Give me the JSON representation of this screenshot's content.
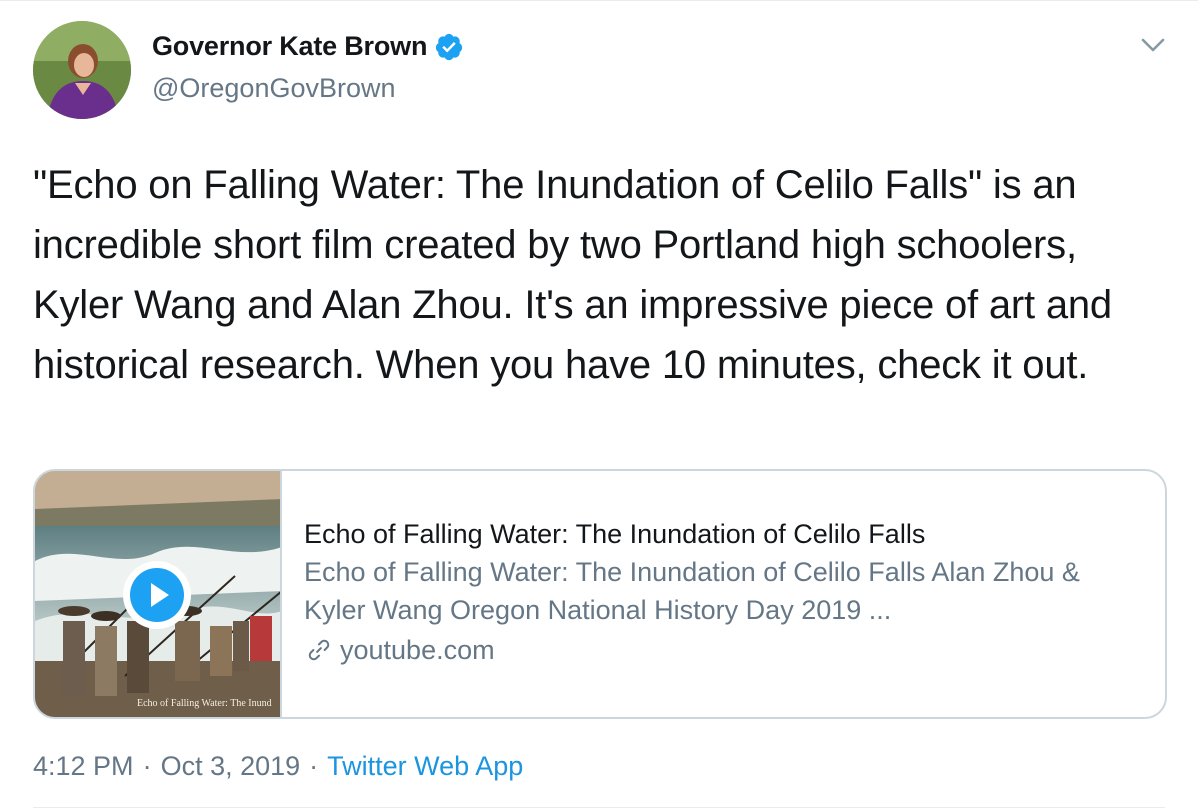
{
  "author": {
    "display_name": "Governor Kate Brown",
    "handle": "@OregonGovBrown",
    "verified": true
  },
  "tweet": {
    "text": "\"Echo on Falling Water: The Inundation of Celilo Falls\" is an incredible short film created by two Portland high schoolers, Kyler Wang and Alan Zhou. It's an impressive piece of art and historical research. When you have 10 minutes, check it out."
  },
  "card": {
    "title": "Echo of Falling Water: The Inundation of Celilo Falls",
    "description": "Echo of Falling Water: The Inundation of Celilo Falls Alan Zhou & Kyler Wang Oregon National History Day 2019 ...",
    "domain": "youtube.com",
    "thumbnail_caption": "Echo of Falling Water: The Inund"
  },
  "meta": {
    "time": "4:12 PM",
    "separator": "·",
    "date": "Oct 3, 2019",
    "source": "Twitter Web App"
  },
  "colors": {
    "accent": "#1b95e0",
    "verified": "#1da1f2",
    "secondary_text": "#657786",
    "border": "#ccd6dd"
  },
  "icons": [
    "verified-badge-icon",
    "chevron-down-icon",
    "play-icon",
    "link-icon"
  ]
}
